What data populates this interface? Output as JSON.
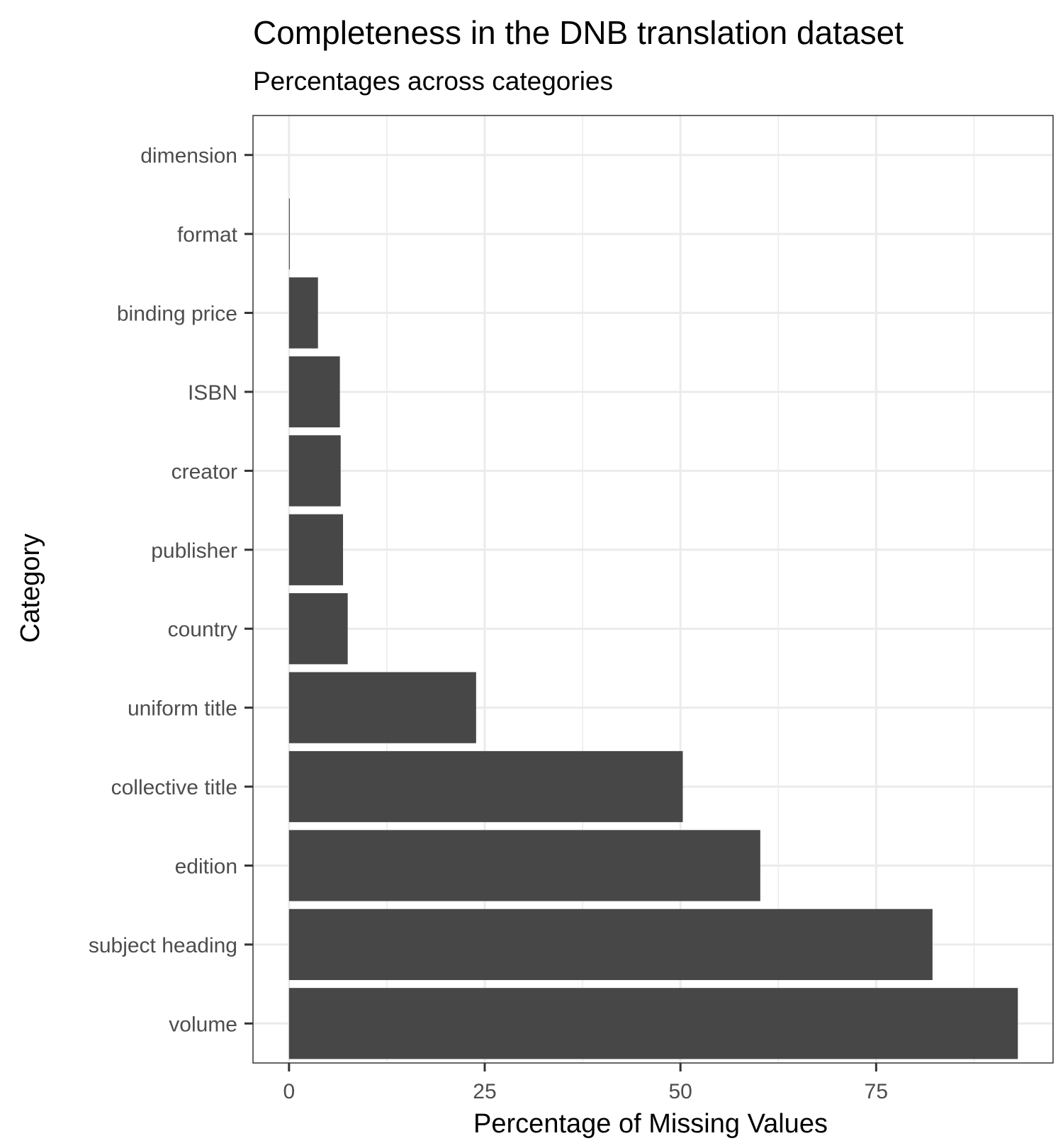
{
  "chart_data": {
    "type": "bar",
    "orientation": "horizontal",
    "title": "Completeness in the DNB translation dataset",
    "subtitle": "Percentages across categories",
    "xlabel": "Percentage of Missing Values",
    "ylabel": "Category",
    "categories": [
      "volume",
      "subject heading",
      "edition",
      "collective title",
      "uniform title",
      "country",
      "publisher",
      "creator",
      "ISBN",
      "binding price",
      "format",
      "dimension"
    ],
    "values": [
      93.1,
      82.2,
      60.2,
      50.3,
      23.9,
      7.5,
      6.9,
      6.6,
      6.5,
      3.7,
      0.1,
      0.0
    ],
    "xlim": [
      -4.6,
      97.6
    ],
    "xticks": [
      0,
      25,
      50,
      75
    ],
    "xtick_labels": [
      "0",
      "25",
      "50",
      "75"
    ],
    "grid": true,
    "legend": "none",
    "colors": {
      "bar": "#474747",
      "grid": "#ebebeb",
      "border": "#333333"
    }
  }
}
